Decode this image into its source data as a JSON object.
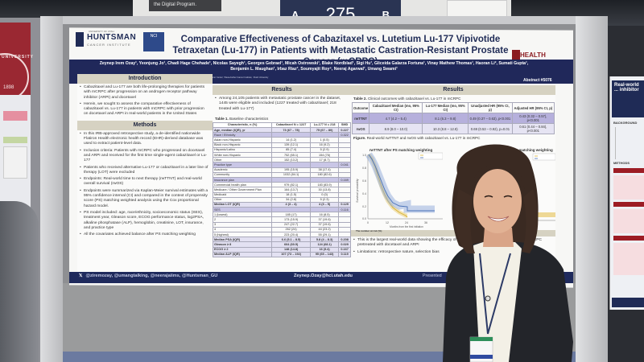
{
  "scene": {
    "type": "photo",
    "description": "Presenter standing next to a scientific poster at a conference"
  },
  "signage": {
    "digital_program_text": "the Digital Program.",
    "board_number": "275",
    "board_left": "A",
    "board_right": "B"
  },
  "left_banner": {
    "text": "UNIVERSITY",
    "year": "1898"
  },
  "poster": {
    "logos": {
      "institution_small": "UNIVERSITY OF UTAH",
      "institution": "HUNTSMAN",
      "institution_sub": "CANCER INSTITUTE",
      "nci": "NCI",
      "right_logo": "HEALTH",
      "right_logo_sub": "UNIVERSITY OF UTAH"
    },
    "title": "Comparative Effectiveness of Cabazitaxel vs. Lutetium Lu-177 Vipivotide Tetraxetan (Lu-177) in Patients with Metastatic Castration-Resistant Prostate Cancer (mCRPC)",
    "authors": "Zeynep Irem Ozay¹, Yeonjung Jo¹, Chadi Hage Chehade¹, Nicolas Sayegh¹, Georges Gebrael¹, Micah Ostrowski¹, Blake Nordblad¹, Sigi Hu¹, Gliceida Galarza Fortuna¹, Vinay Mathew Thomas¹, Haoran Li², Sumati Gupta¹, Benjamin L. Maughan¹, Irbaz Riaz³, Soumyajit Roy⁴, Neeraj Agarwal¹, Umang Swami¹",
    "affiliations": "¹Division of Medical Oncology, Department of Internal Medicine, Huntsman Cancer Institute, Salt Lake City, UT, USA; ²University of Kansas Cancer Center; ³Dana-Farber Cancer Institute; ⁴Rush University",
    "abstract_number": "Abstract #5076",
    "introduction": {
      "heading": "Introduction",
      "bullets": [
        "Cabazitaxel and Lu-177 are both life-prolonging therapies for patients with mCRPC after progression on an androgen receptor pathway inhibitor (ARPI) and docetaxel",
        "Herein, we sought to assess the comparative effectiveness of cabazitaxel vs. Lu-177 in patients with mCRPC with prior progression on docetaxel and ARPI in real-world patients in the United States"
      ]
    },
    "methods": {
      "heading": "Methods",
      "bullets": [
        "In this IRB-approved retrospective study, a de-identified nationwide Flatiron Health electronic health record (EHR)-derived database was used to extract patient-level data.",
        "Inclusion criteria: Patients with mCRPC who progressed on docetaxel and ARPI and received for the first time single-agent cabazitaxel or Lu-177",
        "Patients who received alternative Lu-177 or cabazitaxel in a later line of therapy (LOT) were excluded",
        "Endpoints: Real-world time to next therapy (rwTTNT) and real-world overall survival (rwOS)",
        "Endpoints were summarized via Kaplan-Meier survival estimates with a 95% confidence interval (CI) and compared in the context of propensity score (PS) matching weighted analysis using the Cox proportional hazard model.",
        "PS model included: age, race/ethnicity, socioeconomic status (SES), treatment year, Gleason score, ECOG performance status, log2PSA, alkaline phosphatase (ALP), hemoglobin, creatinine, LOT, insurance, and practice type",
        "All the covariates achieved balance after PS matching weighting"
      ]
    },
    "results_left": {
      "heading": "Results",
      "bullets": [
        "Among 24,105 patients with metastatic prostate cancer in the dataset, 1445 were eligible and included (1227 treated with cabazitaxel; 218 treated with Lu-177)"
      ],
      "table1": {
        "caption_bold": "Table 1.",
        "caption": " Baseline characteristics",
        "headers": [
          "Characteristic, n (%)",
          "Cabazitaxel N = 1227",
          "Lu-177 N = 218",
          "SMD"
        ],
        "rows": [
          {
            "type": "bold",
            "cells": [
              "Age, median (IQR), yr",
              "73 (67 – 78)",
              "75 (67 – 80)",
              "0.227"
            ]
          },
          {
            "type": "sub",
            "cells": [
              "Race / Ethnicity",
              "",
              "",
              "0.322"
            ]
          },
          {
            "type": "row",
            "cells": [
              "Asian non-Hispanic",
              "14 (1.2)",
              "1 (0.5)",
              ""
            ]
          },
          {
            "type": "row",
            "cells": [
              "Black non-Hispanic",
              "139 (12.1)",
              "16 (9.2)",
              ""
            ]
          },
          {
            "type": "row",
            "cells": [
              "Hispanic/Latino",
              "85 (7.4)",
              "5 (2.9)",
              ""
            ]
          },
          {
            "type": "row",
            "cells": [
              "White non-Hispanic",
              "752 (65.1)",
              "154 (76)",
              ""
            ]
          },
          {
            "type": "row",
            "cells": [
              "Other",
              "152 (13.2)",
              "17 (8.7)",
              ""
            ]
          },
          {
            "type": "sub",
            "cells": [
              "Practice type",
              "",
              "",
              "0.041"
            ]
          },
          {
            "type": "row",
            "cells": [
              "Academic",
              "195 (15.9)",
              "38 (17.4)",
              ""
            ]
          },
          {
            "type": "row",
            "cells": [
              "Community",
              "1032 (84.1)",
              "180 (82.6)",
              ""
            ]
          },
          {
            "type": "sub",
            "cells": [
              "Insurance plan",
              "",
              "",
              "0.169"
            ]
          },
          {
            "type": "row",
            "cells": [
              "Commercial health plan",
              "979 (82.1)",
              "183 (83.9)",
              ""
            ]
          },
          {
            "type": "row",
            "cells": [
              "Medicare / Other Government Plan",
              "164 (13.7)",
              "30 (13.8)",
              ""
            ]
          },
          {
            "type": "row",
            "cells": [
              "Medicaid",
              "18 (1.5)",
              "0 (0)",
              ""
            ]
          },
          {
            "type": "row",
            "cells": [
              "Other",
              "34 (2.8)",
              "5 (2.3)",
              ""
            ]
          },
          {
            "type": "bold",
            "cells": [
              "Median LOT (IQR)",
              "4 (3 – 4)",
              "4 (3 – 5)",
              "0.129"
            ]
          },
          {
            "type": "sub",
            "cells": [
              "SES",
              "",
              "",
              "0.116"
            ]
          },
          {
            "type": "row",
            "cells": [
              "1 (lowest)",
              "185 (17)",
              "16 (8.5)",
              ""
            ]
          },
          {
            "type": "row",
            "cells": [
              "2",
              "173 (15.9)",
              "37 (19.6)",
              ""
            ]
          },
          {
            "type": "row",
            "cells": [
              "3",
              "247 (22.7)",
              "37 (19.6)",
              ""
            ]
          },
          {
            "type": "row",
            "cells": [
              "4",
              "262 (24)",
              "44 (23.2)",
              ""
            ]
          },
          {
            "type": "row",
            "cells": [
              "5 (highest)",
              "223 (20.4)",
              "55 (29.1)",
              ""
            ]
          },
          {
            "type": "bold",
            "cells": [
              "Median PSA (IQR)",
              "6.6 (5.1 – 8.5)",
              "5.8 (4 – 8.3)",
              "0.208"
            ]
          },
          {
            "type": "bold",
            "cells": [
              "Gleason ≥ 8",
              "664 (60.5)",
              "124 (68.1)",
              "0.029"
            ]
          },
          {
            "type": "bold",
            "cells": [
              "ECOG ≥ 2",
              "148 (14.8)",
              "16 (9.4)",
              "0.167"
            ]
          },
          {
            "type": "bold",
            "cells": [
              "Median ALP (IQR)",
              "107 (73 – 192)",
              "95 (65 – 143)",
              "0.119"
            ]
          }
        ]
      }
    },
    "results_right": {
      "heading": "Results",
      "table2": {
        "caption_bold": "Table 2.",
        "caption": " Clinical outcomes with cabazitaxel vs. Lu-177 in mCRPC",
        "headers": [
          "Outcome",
          "Cabazitaxel Median (mo, 95% CI)",
          "Lu-177 Median (mo, 95% CI)",
          "Unadjusted HR (95% CI, p)",
          "Adjusted HR (95% CI, p)"
        ],
        "rows": [
          [
            "rwTTNT",
            "4.7 (4.2 – 5.4)",
            "8.1 (6.3 – 9.8)",
            "0.49 (0.37 – 0.63), p<0.001",
            "0.43 (0.32 – 0.57), p<0.001"
          ],
          [
            "rwOS",
            "8.9 (8.0 – 10.0)",
            "10.3 (8.8 – 12.8)",
            "0.69 (0.53 – 0.92), p=0.01",
            "0.61 (0.44 – 0.84), p<0.001"
          ]
        ]
      },
      "figure_caption_bold": "Figure.",
      "figure_caption": " Real-world rwTTNT and rwOS with cabazitaxel vs. Lu-177 in mCRPC",
      "conclusion_bullets": [
        "This is the largest real-world data showing the efficacy of Lu-177 over cabazitaxel in patients with mCRPC pretreated with docetaxel and ARPI",
        "Limitations: retrospective nature, selection bias"
      ]
    },
    "footer": {
      "social_icon": "x-icon",
      "handles": "@ziremozay, @umangtalking, @neerajaiims, @Huntsman_GU",
      "email": "Zeynep.Ozay@hci.utah.edu",
      "presented": "Presented"
    }
  },
  "right_poster": {
    "title": "Real-world ... inhibitor",
    "authors": "Qian Qin¹, ...",
    "sections": [
      "BACKGROUND",
      "METHODS"
    ]
  },
  "chart_data": [
    {
      "type": "line",
      "title": "rwTTNT after PS matching weighting",
      "xlabel": "Months from the first initiation",
      "ylabel": "Survival probability",
      "x_ticks": [
        0,
        12,
        24,
        36
      ],
      "y_ticks": [
        0.0,
        0.2,
        0.4,
        0.6,
        0.8,
        1.0
      ],
      "ylim": [
        0,
        1
      ],
      "legend": [
        "Cabazitaxel (N=1227)",
        "Lu-177 (N=218)"
      ],
      "series": [
        {
          "name": "Lu-177",
          "color": "#4a72b8",
          "x": [
            0,
            2,
            4,
            6,
            8,
            10,
            12,
            16,
            20,
            24,
            30,
            36
          ],
          "values": [
            1.0,
            0.9,
            0.75,
            0.6,
            0.48,
            0.38,
            0.3,
            0.2,
            0.14,
            0.1,
            0.1,
            0.1
          ]
        },
        {
          "name": "Cabazitaxel",
          "color": "#d8b232",
          "x": [
            0,
            2,
            4,
            6,
            8,
            10,
            12,
            16,
            20,
            24
          ],
          "values": [
            1.0,
            0.78,
            0.52,
            0.35,
            0.22,
            0.14,
            0.09,
            0.04,
            0.02,
            0.0
          ]
        }
      ],
      "at_risk": {
        "label": "The number at risk (%)",
        "rows": [
          {
            "name": "Cabazitaxel",
            "values": [
              "1227 (100)",
              "4 (0)",
              "0 (0)",
              "0 (0)"
            ]
          },
          {
            "name": "Lu-177",
            "values": [
              "218 (100)",
              "24 (11)",
              "1 (1)",
              "1 (1)"
            ]
          }
        ]
      }
    },
    {
      "type": "line",
      "title": "rwOS after PS matching weighting",
      "legend": [
        "Cabazitaxel (N=1227)",
        "Lu-177 (N=218)"
      ],
      "series": [
        {
          "name": "Lu-177",
          "color": "#4a72b8",
          "values": []
        },
        {
          "name": "Cabazitaxel",
          "color": "#d8b232",
          "values": []
        }
      ]
    }
  ],
  "colors": {
    "navy": "#1f2a5c",
    "section_tan": "#d6d2c2",
    "table_purple": "#b6b0dc",
    "utah_red": "#8b1a1f",
    "lu177_blue": "#4a72b8",
    "cabazitaxel_gold": "#d8b232"
  }
}
